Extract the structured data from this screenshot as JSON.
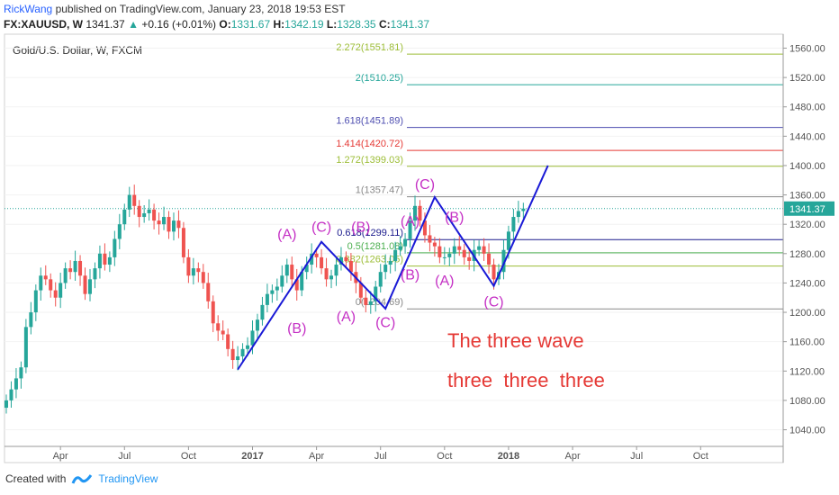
{
  "header": {
    "author": "RickWang",
    "published_text": "published on TradingView.com, January 23, 2018 19:53 EST",
    "symbol": "FX:XAUUSD, W",
    "last": "1341.37",
    "change": "+0.16 (+0.01%)",
    "change_arrow": "▲",
    "o_label": "O:",
    "o": "1331.67",
    "h_label": "H:",
    "h": "1342.19",
    "l_label": "L:",
    "l": "1328.35",
    "c_label": "C:",
    "c": "1341.37"
  },
  "footer": {
    "created_with": "Created with",
    "brand": "TradingView"
  },
  "chart_data": {
    "type": "candlestick",
    "title": "Gold/U.S. Dollar, W, FXCM",
    "ylim": [
      1010,
      1575
    ],
    "y_ticks": [
      1040,
      1080,
      1120,
      1160,
      1200,
      1240,
      1280,
      1320,
      1360,
      1400,
      1440,
      1480,
      1520,
      1560
    ],
    "y_tick_labels": [
      "1040.00",
      "1080.00",
      "1120.00",
      "1160.00",
      "1200.00",
      "1240.00",
      "1280.00",
      "1320.00",
      "1360.00",
      "1400.00",
      "1440.00",
      "1480.00",
      "1520.00",
      "1560.00"
    ],
    "x_ticks": [
      {
        "label": "Apr",
        "bold": false,
        "week": 11
      },
      {
        "label": "Jul",
        "bold": false,
        "week": 24
      },
      {
        "label": "Oct",
        "bold": false,
        "week": 37
      },
      {
        "label": "2017",
        "bold": true,
        "week": 50
      },
      {
        "label": "Apr",
        "bold": false,
        "week": 63
      },
      {
        "label": "Jul",
        "bold": false,
        "week": 76
      },
      {
        "label": "Oct",
        "bold": false,
        "week": 89
      },
      {
        "label": "2018",
        "bold": true,
        "week": 102
      },
      {
        "label": "Apr",
        "bold": false,
        "week": 115
      },
      {
        "label": "Jul",
        "bold": false,
        "week": 128
      },
      {
        "label": "Oct",
        "bold": false,
        "week": 141
      }
    ],
    "last_price": 1341.37,
    "last_price_label": "1341.37",
    "colors": {
      "up": "#26a69a",
      "down": "#ef5350",
      "wave": "#1a1ad6",
      "labels": "#c531c5",
      "annotation": "#e53935"
    },
    "candles_close": [
      1080,
      1095,
      1110,
      1125,
      1180,
      1200,
      1230,
      1250,
      1245,
      1230,
      1220,
      1240,
      1260,
      1255,
      1270,
      1250,
      1225,
      1245,
      1260,
      1280,
      1265,
      1275,
      1300,
      1320,
      1340,
      1360,
      1345,
      1330,
      1335,
      1340,
      1325,
      1320,
      1330,
      1310,
      1325,
      1315,
      1275,
      1250,
      1260,
      1255,
      1240,
      1215,
      1185,
      1175,
      1170,
      1150,
      1135,
      1140,
      1150,
      1155,
      1175,
      1190,
      1210,
      1225,
      1230,
      1235,
      1250,
      1265,
      1245,
      1230,
      1255,
      1265,
      1280,
      1275,
      1260,
      1245,
      1250,
      1265,
      1275,
      1270,
      1255,
      1240,
      1220,
      1210,
      1215,
      1235,
      1255,
      1265,
      1270,
      1285,
      1290,
      1300,
      1325,
      1345,
      1325,
      1305,
      1295,
      1290,
      1275,
      1275,
      1280,
      1290,
      1285,
      1275,
      1270,
      1285,
      1290,
      1280,
      1265,
      1245,
      1255,
      1285,
      1310,
      1330,
      1338,
      1341.37
    ],
    "fib_levels": [
      {
        "ratio": "2.272",
        "price": 1551.81,
        "label": "2.272(1551.81)",
        "color": "#9cbd36"
      },
      {
        "ratio": "2",
        "price": 1510.25,
        "label": "2(1510.25)",
        "color": "#26a69a"
      },
      {
        "ratio": "1.618",
        "price": 1451.89,
        "label": "1.618(1451.89)",
        "color": "#4e4eb0"
      },
      {
        "ratio": "1.414",
        "price": 1420.72,
        "label": "1.414(1420.72)",
        "color": "#e53935"
      },
      {
        "ratio": "1.272",
        "price": 1399.03,
        "label": "1.272(1399.03)",
        "color": "#9cbd36"
      },
      {
        "ratio": "1",
        "price": 1357.47,
        "label": "1(1357.47)",
        "color": "#888888"
      },
      {
        "ratio": "0.618",
        "price": 1299.11,
        "label": "0.618(1299.11)",
        "color": "#1a1a8c"
      },
      {
        "ratio": "0.5",
        "price": 1281.08,
        "label": "0.5(1281.08)",
        "color": "#4caf50"
      },
      {
        "ratio": "0.382",
        "price": 1263.05,
        "label": "0.382(1263.05)",
        "color": "#9cbd36"
      },
      {
        "ratio": "0",
        "price": 1204.69,
        "label": "0(1204.69)",
        "color": "#888888"
      }
    ],
    "wave_path": [
      {
        "week": 47,
        "price": 1122
      },
      {
        "week": 64,
        "price": 1296
      },
      {
        "week": 77,
        "price": 1205
      },
      {
        "week": 87,
        "price": 1357
      },
      {
        "week": 99,
        "price": 1236
      },
      {
        "week": 110,
        "price": 1400
      }
    ],
    "wave_labels": [
      {
        "text": "(A)",
        "week": 57,
        "price": 1300
      },
      {
        "text": "(B)",
        "week": 59,
        "price": 1172
      },
      {
        "text": "(C)",
        "week": 64,
        "price": 1310
      },
      {
        "text": "(A)",
        "week": 69,
        "price": 1188
      },
      {
        "text": "(B)",
        "week": 72,
        "price": 1310
      },
      {
        "text": "(C)",
        "week": 77,
        "price": 1180
      },
      {
        "text": "(A)",
        "week": 82,
        "price": 1318
      },
      {
        "text": "(B)",
        "week": 82,
        "price": 1245
      },
      {
        "text": "(C)",
        "week": 85,
        "price": 1368
      },
      {
        "text": "(B)",
        "week": 91,
        "price": 1323
      },
      {
        "text": "(A)",
        "week": 89,
        "price": 1237
      },
      {
        "text": "(C)",
        "week": 99,
        "price": 1208
      }
    ],
    "annotations": [
      "The three wave",
      "three  three  three"
    ]
  }
}
